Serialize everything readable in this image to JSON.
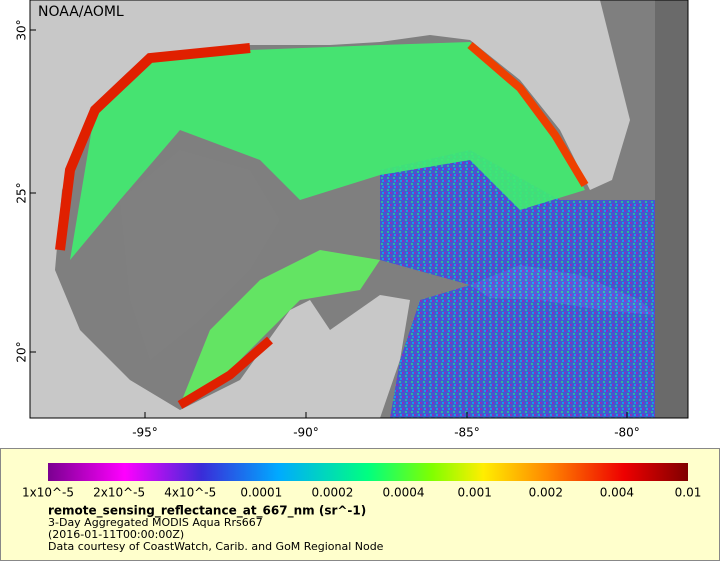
{
  "map": {
    "credit": "NOAA/AOML",
    "lat_labels": [
      "30°",
      "25°",
      "20°"
    ],
    "lon_labels": [
      "-95°",
      "-90°",
      "-85°",
      "-80°"
    ]
  },
  "colorbar": {
    "labels": [
      "1x10^-5",
      "2x10^-5",
      "4x10^-5",
      "0.0001",
      "0.0002",
      "0.0004",
      "0.001",
      "0.002",
      "0.004",
      "0.01"
    ]
  },
  "caption": {
    "variable": "remote_sensing_reflectance_at_667_nm (sr^-1)",
    "title": "3-Day Aggregated MODIS Aqua Rrs667",
    "date": "(2016-01-11T00:00:00Z)",
    "credit": "Data courtesy of CoastWatch, Carib. and GoM Regional Node"
  }
}
